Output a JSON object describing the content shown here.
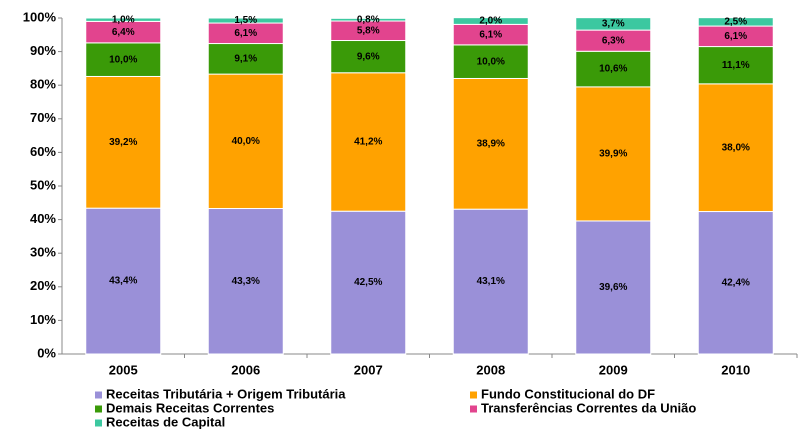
{
  "chart_data": {
    "type": "stacked_bar",
    "categories": [
      "2005",
      "2006",
      "2007",
      "2008",
      "2009",
      "2010"
    ],
    "series": [
      {
        "name": "Receitas Tributária + Origem Tributária",
        "color": "#9a90d8",
        "values": [
          43.4,
          43.3,
          42.5,
          43.1,
          39.6,
          42.4
        ],
        "value_labels": [
          "43,4%",
          "43,3%",
          "42,5%",
          "43,1%",
          "39,6%",
          "42,4%"
        ]
      },
      {
        "name": "Fundo Constitucional do DF",
        "color": "#ffa200",
        "values": [
          39.2,
          40.0,
          41.2,
          38.9,
          39.9,
          38.0
        ],
        "value_labels": [
          "39,2%",
          "40,0%",
          "41,2%",
          "38,9%",
          "39,9%",
          "38,0%"
        ]
      },
      {
        "name": "Demais Receitas Correntes",
        "color": "#3a9a08",
        "values": [
          10.0,
          9.1,
          9.6,
          10.0,
          10.6,
          11.1
        ],
        "value_labels": [
          "10,0%",
          "9,1%",
          "9,6%",
          "10,0%",
          "10,6%",
          "11,1%"
        ]
      },
      {
        "name": "Transferências Correntes da União",
        "color": "#e2448e",
        "values": [
          6.4,
          6.1,
          5.8,
          6.1,
          6.3,
          6.1
        ],
        "value_labels": [
          "6,4%",
          "6,1%",
          "5,8%",
          "6,1%",
          "6,3%",
          "6,1%"
        ]
      },
      {
        "name": "Receitas de Capital",
        "color": "#3cc8a0",
        "values": [
          1.0,
          1.5,
          0.8,
          2.0,
          3.7,
          2.5
        ],
        "value_labels": [
          "1,0%",
          "1,5%",
          "0,8%",
          "2,0%",
          "3,7%",
          "2,5%"
        ]
      }
    ],
    "ylim": [
      0,
      100
    ],
    "yticks": [
      {
        "value": 0,
        "label": "0%"
      },
      {
        "value": 10,
        "label": "10%"
      },
      {
        "value": 20,
        "label": "20%"
      },
      {
        "value": 30,
        "label": "30%"
      },
      {
        "value": 40,
        "label": "40%"
      },
      {
        "value": 50,
        "label": "50%"
      },
      {
        "value": 60,
        "label": "60%"
      },
      {
        "value": 70,
        "label": "70%"
      },
      {
        "value": 80,
        "label": "80%"
      },
      {
        "value": 90,
        "label": "90%"
      },
      {
        "value": 100,
        "label": "100%"
      }
    ],
    "legend": "bottom"
  }
}
